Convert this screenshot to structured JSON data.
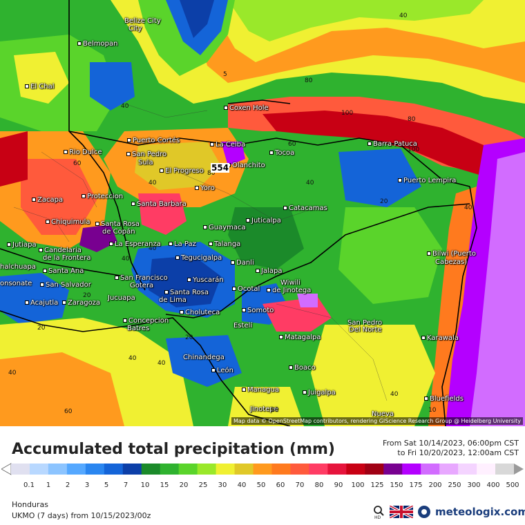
{
  "map": {
    "places": [
      {
        "name": "Belize City",
        "id": "belize-city"
      },
      {
        "name": "Belmopan",
        "id": "belmopan"
      },
      {
        "name": "El Chal",
        "id": "el-chal"
      },
      {
        "name": "Coxen Hole",
        "id": "coxen-hole"
      },
      {
        "name": "Puerto Cortés",
        "id": "puerto-cortes"
      },
      {
        "name": "La Ceiba",
        "id": "la-ceiba"
      },
      {
        "name": "Tocoa",
        "id": "tocoa"
      },
      {
        "name": "Barra Patuca",
        "id": "barra-patuca"
      },
      {
        "name": "Rio Dulce",
        "id": "rio-dulce"
      },
      {
        "name": "San Pedro",
        "id": "san-pedro"
      },
      {
        "name": "Sula",
        "id": "sula"
      },
      {
        "name": "El Progreso",
        "id": "el-progreso"
      },
      {
        "name": "Olanchito",
        "id": "olanchito"
      },
      {
        "name": "Puerto Lempira",
        "id": "puerto-lempira"
      },
      {
        "name": "Yoro",
        "id": "yoro"
      },
      {
        "name": "Zacapa",
        "id": "zacapa"
      },
      {
        "name": "Proteccion",
        "id": "proteccion"
      },
      {
        "name": "Santa Barbara",
        "id": "santa-barbara"
      },
      {
        "name": "Catacamas",
        "id": "catacamas"
      },
      {
        "name": "Chiquimula",
        "id": "chiquimula"
      },
      {
        "name": "Santa Rosa",
        "id": "santa-rosa"
      },
      {
        "name": "de Copán",
        "id": "de-copan"
      },
      {
        "name": "Juticalpa",
        "id": "juticalpa"
      },
      {
        "name": "Guaymaca",
        "id": "guaymaca"
      },
      {
        "name": "Jutiapa",
        "id": "jutiapa"
      },
      {
        "name": "La Esperanza",
        "id": "la-esperanza"
      },
      {
        "name": "La Paz",
        "id": "la-paz"
      },
      {
        "name": "Talanga",
        "id": "talanga"
      },
      {
        "name": "Candelaria",
        "id": "candelaria"
      },
      {
        "name": "de la Frontera",
        "id": "de-la-frontera"
      },
      {
        "name": "Bilwi (Puerto",
        "id": "bilwi"
      },
      {
        "name": "Cabezas)",
        "id": "cabezas"
      },
      {
        "name": "Tegucigalpa",
        "id": "tegucigalpa"
      },
      {
        "name": "Danli",
        "id": "danli"
      },
      {
        "name": "halchuapa",
        "id": "chalchuapa"
      },
      {
        "name": "Santa Ana",
        "id": "santa-ana"
      },
      {
        "name": "Jalapa",
        "id": "jalapa"
      },
      {
        "name": "San Francisco",
        "id": "san-francisco"
      },
      {
        "name": "Yuscarán",
        "id": "yuscaran"
      },
      {
        "name": "onsonate",
        "id": "sonsonate"
      },
      {
        "name": "San Salvador",
        "id": "san-salvador"
      },
      {
        "name": "Gotera",
        "id": "gotera"
      },
      {
        "name": "Wiwili",
        "id": "wiwili"
      },
      {
        "name": "Ocotal",
        "id": "ocotal"
      },
      {
        "name": "de Jinotega",
        "id": "de-jinotega"
      },
      {
        "name": "Santa Rosa",
        "id": "santa-rosa-lima"
      },
      {
        "name": "de Lima",
        "id": "de-lima"
      },
      {
        "name": "Acajutla",
        "id": "acajutla"
      },
      {
        "name": "Zaragoza",
        "id": "zaragoza"
      },
      {
        "name": "Jucuapa",
        "id": "jucuapa"
      },
      {
        "name": "Somoto",
        "id": "somoto"
      },
      {
        "name": "Choluteca",
        "id": "choluteca"
      },
      {
        "name": "San Pedro",
        "id": "san-pedro-norte"
      },
      {
        "name": "Del Norte",
        "id": "del-norte"
      },
      {
        "name": "Concepcion",
        "id": "concepcion"
      },
      {
        "name": "Batres",
        "id": "batres"
      },
      {
        "name": "Estelí",
        "id": "esteli"
      },
      {
        "name": "Matagalpa",
        "id": "matagalpa"
      },
      {
        "name": "Karawala",
        "id": "karawala"
      },
      {
        "name": "Chinandega",
        "id": "chinandega"
      },
      {
        "name": "Boaco",
        "id": "boaco"
      },
      {
        "name": "León",
        "id": "leon"
      },
      {
        "name": "Managua",
        "id": "managua"
      },
      {
        "name": "Juigalpa",
        "id": "juigalpa"
      },
      {
        "name": "Bluefields",
        "id": "bluefields"
      },
      {
        "name": "Jinotepe",
        "id": "jinotepe"
      },
      {
        "name": "Nueva",
        "id": "nueva"
      }
    ],
    "contours": [
      "40",
      "5",
      "80",
      "40",
      "100",
      "80",
      "60",
      "100",
      "40",
      "60",
      "40",
      "80",
      "20",
      "40",
      "40",
      "40",
      "20",
      "20",
      "40",
      "40",
      "20",
      "40",
      "60",
      "20",
      "10",
      "40"
    ],
    "max_value": "554",
    "attribution": "Map data © OpenStreetMap contributors, rendering GIScience Research Group @ Heidelberg University"
  },
  "title": "Accumulated total precipitation (mm)",
  "period": {
    "from": "From Sat 10/14/2023, 06:00pm CST",
    "to": "to Fri 10/20/2023, 12:00am CST"
  },
  "scale": {
    "labels": [
      "0.1",
      "1",
      "2",
      "3",
      "5",
      "7",
      "10",
      "15",
      "20",
      "25",
      "30",
      "40",
      "50",
      "60",
      "70",
      "80",
      "90",
      "100",
      "125",
      "150",
      "175",
      "200",
      "250",
      "300",
      "400",
      "500"
    ],
    "colors": [
      "#e0e0f0",
      "#b8d8ff",
      "#8cc4ff",
      "#55a8ff",
      "#2a86f0",
      "#1464d8",
      "#0c3fa8",
      "#1b8a2a",
      "#2fb22f",
      "#5ad42b",
      "#9ae82a",
      "#f0f032",
      "#e0c828",
      "#ff9a1e",
      "#ff7a1e",
      "#ff5a3c",
      "#ff3c64",
      "#e6143c",
      "#c80014",
      "#a00014",
      "#780090",
      "#b400ff",
      "#d26cff",
      "#e8a8ff",
      "#f4d4ff",
      "#fff0ff",
      "#d8d8d8"
    ]
  },
  "footer": {
    "region": "Honduras",
    "model": "UKMO (7 days) from  10/15/2023/00z",
    "brand": "meteologix.com"
  }
}
